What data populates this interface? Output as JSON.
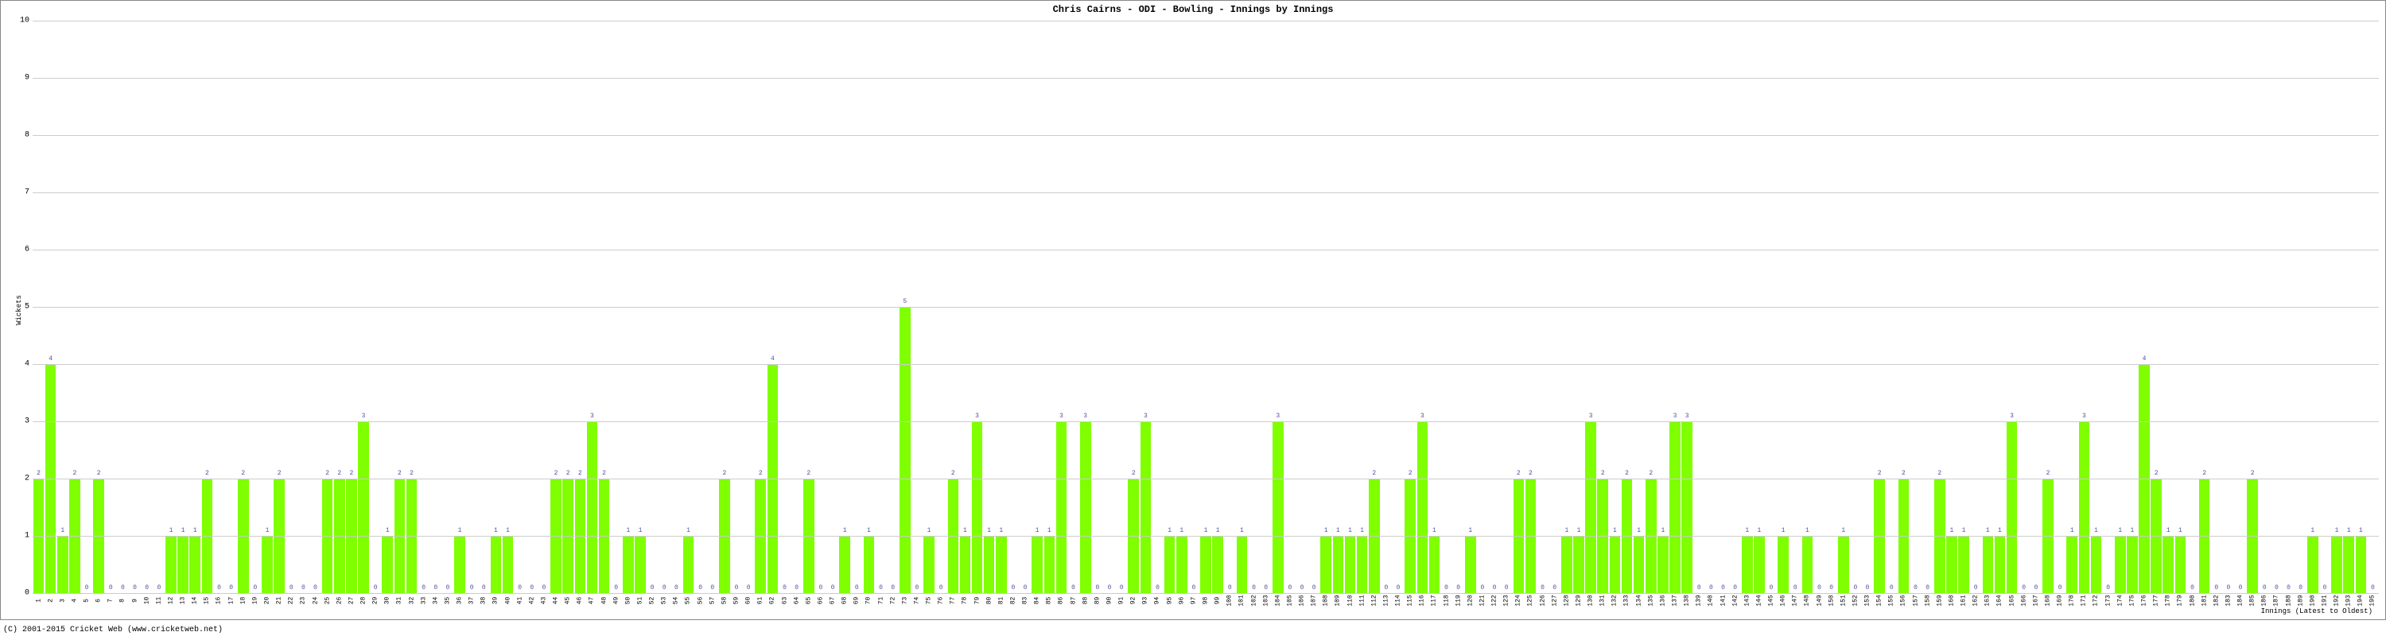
{
  "chart": {
    "type": "bar",
    "title": "Chris Cairns - ODI - Bowling - Innings by Innings",
    "ylabel": "Wickets",
    "xlabel": "Innings (Latest to Oldest)",
    "ylim": [
      0,
      10
    ],
    "ytick_step": 1,
    "bar_color": "#7fff00",
    "background_color": "#ffffff",
    "grid_color": "#cccccc",
    "border_color": "#888888",
    "label_color": "#5050a0",
    "title_fontsize": 12,
    "label_fontsize": 8,
    "bar_width_ratio": 0.9,
    "values": [
      2,
      4,
      1,
      2,
      0,
      2,
      0,
      0,
      0,
      0,
      0,
      1,
      1,
      1,
      2,
      0,
      0,
      2,
      0,
      1,
      2,
      0,
      0,
      0,
      2,
      2,
      2,
      3,
      0,
      1,
      2,
      2,
      0,
      0,
      0,
      1,
      0,
      0,
      1,
      1,
      0,
      0,
      0,
      2,
      2,
      2,
      3,
      2,
      0,
      1,
      1,
      0,
      0,
      0,
      1,
      0,
      0,
      2,
      0,
      0,
      2,
      4,
      0,
      0,
      2,
      0,
      0,
      1,
      0,
      1,
      0,
      0,
      5,
      0,
      1,
      0,
      2,
      1,
      3,
      1,
      1,
      0,
      0,
      1,
      1,
      3,
      0,
      3,
      0,
      0,
      0,
      2,
      3,
      0,
      1,
      1,
      0,
      1,
      1,
      0,
      1,
      0,
      0,
      3,
      0,
      0,
      0,
      1,
      1,
      1,
      1,
      2,
      0,
      0,
      2,
      3,
      1,
      0,
      0,
      1,
      0,
      0,
      0,
      2,
      2,
      0,
      0,
      1,
      1,
      3,
      2,
      1,
      2,
      1,
      2,
      1,
      3,
      3,
      0,
      0,
      0,
      0,
      1,
      1,
      0,
      1,
      0,
      1,
      0,
      0,
      1,
      0,
      0,
      2,
      0,
      2,
      0,
      0,
      2,
      1,
      1,
      0,
      1,
      1,
      3,
      0,
      0,
      2,
      0,
      1,
      3,
      1,
      0,
      1,
      1,
      4,
      2,
      1,
      1,
      0,
      2,
      0,
      0,
      0,
      2,
      0,
      0,
      0,
      0,
      1,
      0,
      1,
      1,
      1,
      0
    ]
  },
  "copyright": "(C) 2001-2015 Cricket Web (www.cricketweb.net)"
}
